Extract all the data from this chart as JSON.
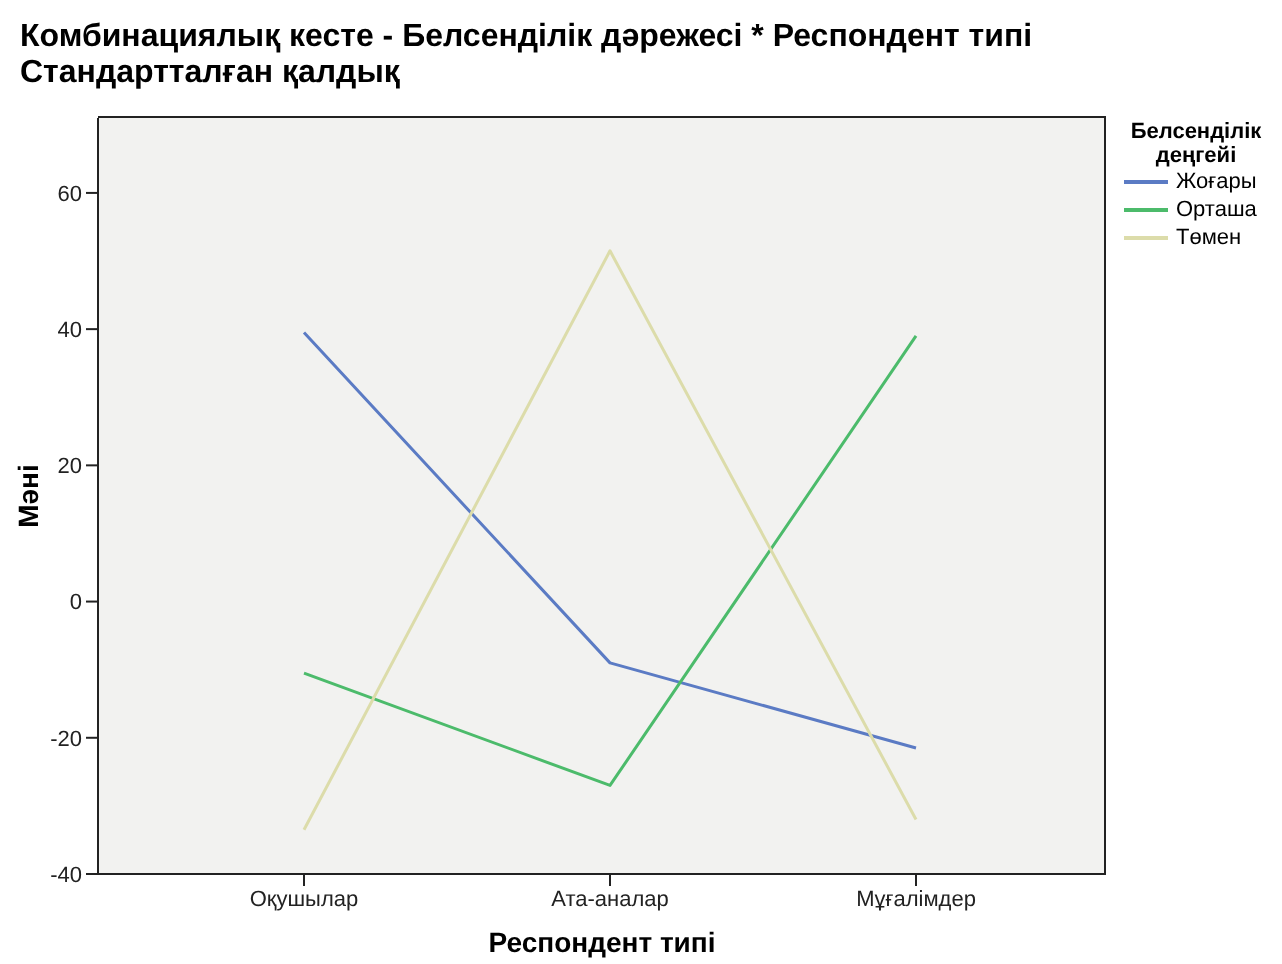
{
  "chart_data": {
    "type": "line",
    "title": "Комбинациялық кесте -  Белсенділік дәрежесі * Респондент типі",
    "subtitle": "Стандартталған қалдық",
    "xlabel": "Респондент типі",
    "ylabel": "Мәні",
    "legend_title": "Белсенділік деңгейі",
    "categories": [
      "Оқушылар",
      "Ата-аналар",
      "Мұғалімдер"
    ],
    "series": [
      {
        "name": "Жоғары",
        "color": "#5b7bc4",
        "values": [
          39.5,
          -9,
          -21.5
        ]
      },
      {
        "name": "Орташа",
        "color": "#4cbb6b",
        "values": [
          -10.5,
          -27,
          39
        ]
      },
      {
        "name": "Төмен",
        "color": "#dcdcaa",
        "values": [
          -33.5,
          51.5,
          -32
        ]
      }
    ],
    "ylim": [
      -40,
      71
    ],
    "yticks": [
      -40,
      -20,
      0,
      20,
      40,
      60
    ],
    "grid": false,
    "legend": "right",
    "marker": "none",
    "line_style": "solid"
  }
}
